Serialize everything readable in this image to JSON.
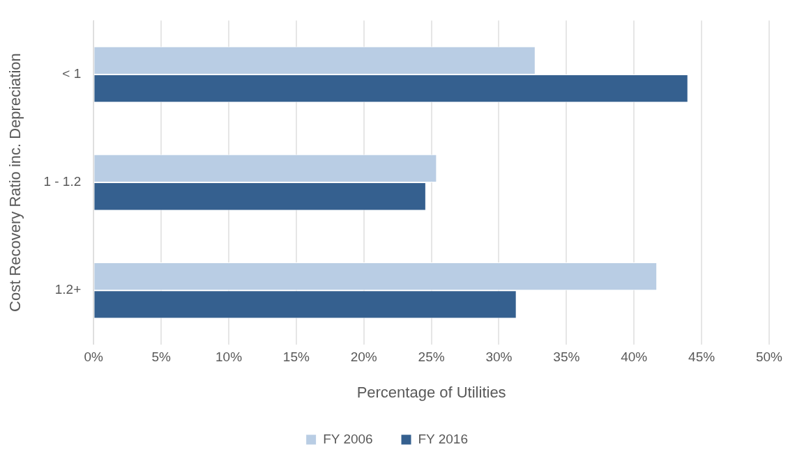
{
  "chart_data": {
    "type": "bar",
    "orientation": "horizontal",
    "xlabel": "Percentage of Utilities",
    "ylabel": "Cost Recovery Ratio inc. Depreciation",
    "categories": [
      "< 1",
      "1 - 1.2",
      "1.2+"
    ],
    "series": [
      {
        "name": "FY 2006",
        "color": "#b9cde4",
        "values": [
          32.7,
          25.4,
          41.7
        ]
      },
      {
        "name": "FY 2016",
        "color": "#35608f",
        "values": [
          44.0,
          24.6,
          31.3
        ]
      }
    ],
    "xlim": [
      0,
      50
    ],
    "xticks": [
      {
        "value": 0,
        "label": "0%"
      },
      {
        "value": 5,
        "label": "5%"
      },
      {
        "value": 10,
        "label": "10%"
      },
      {
        "value": 15,
        "label": "15%"
      },
      {
        "value": 20,
        "label": "20%"
      },
      {
        "value": 25,
        "label": "25%"
      },
      {
        "value": 30,
        "label": "30%"
      },
      {
        "value": 35,
        "label": "35%"
      },
      {
        "value": 40,
        "label": "40%"
      },
      {
        "value": 45,
        "label": "45%"
      },
      {
        "value": 50,
        "label": "50%"
      }
    ],
    "grid": "x",
    "legend": "bottom"
  }
}
